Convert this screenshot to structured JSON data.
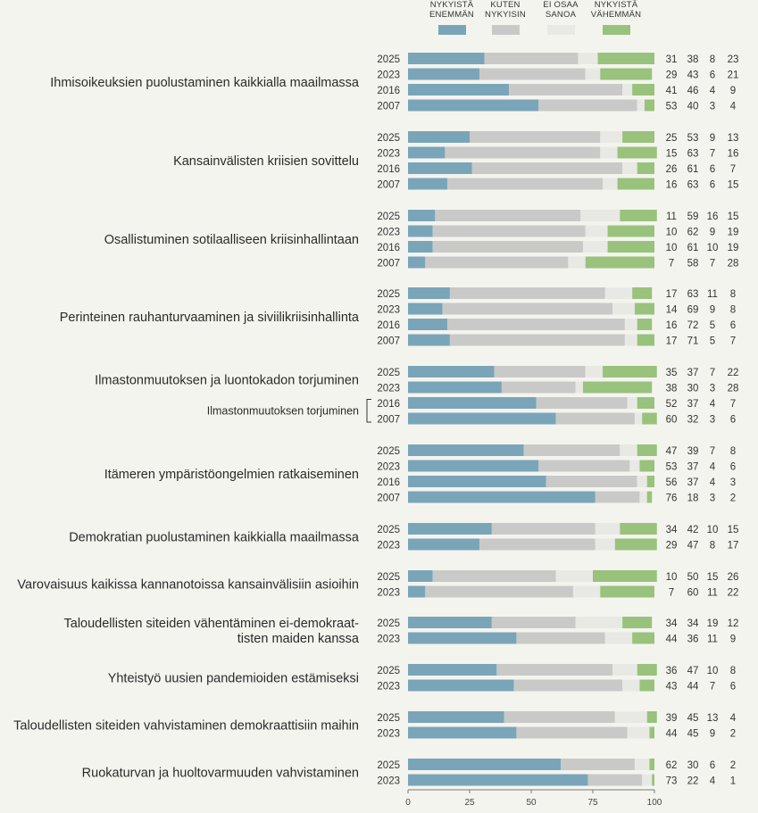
{
  "legend": [
    {
      "label": "NYKYISTÄ\nENEMMÄN",
      "color": "#7aa5b8"
    },
    {
      "label": "KUTEN\nNYKYISIN",
      "color": "#c9c9c8"
    },
    {
      "label": "EI OSAA\nSANOA",
      "color": "#e8e8e5"
    },
    {
      "label": "NYKYISTÄ\nVÄHEMMÄN",
      "color": "#99c27c"
    }
  ],
  "chart_data": {
    "type": "bar",
    "orientation": "horizontal",
    "stacked": true,
    "xlim": [
      0,
      100
    ],
    "xticks": [
      "0",
      "25",
      "50",
      "75",
      "100"
    ],
    "series_names": [
      "NYKYISTÄ ENEMMÄN",
      "KUTEN NYKYISIN",
      "EI OSAA SANOA",
      "NYKYISTÄ VÄHEMMÄN"
    ],
    "groups": [
      {
        "label": "Ihmisoikeuksien puolustaminen kaikkialla maailmassa",
        "rows": [
          {
            "year": "2025",
            "values": [
              31,
              38,
              8,
              23
            ]
          },
          {
            "year": "2023",
            "values": [
              29,
              43,
              6,
              21
            ]
          },
          {
            "year": "2016",
            "values": [
              41,
              46,
              4,
              9
            ]
          },
          {
            "year": "2007",
            "values": [
              53,
              40,
              3,
              4
            ]
          }
        ]
      },
      {
        "label": "Kansainvälisten kriisien sovittelu",
        "rows": [
          {
            "year": "2025",
            "values": [
              25,
              53,
              9,
              13
            ]
          },
          {
            "year": "2023",
            "values": [
              15,
              63,
              7,
              16
            ]
          },
          {
            "year": "2016",
            "values": [
              26,
              61,
              6,
              7
            ]
          },
          {
            "year": "2007",
            "values": [
              16,
              63,
              6,
              15
            ]
          }
        ]
      },
      {
        "label": "Osallistuminen sotilaalliseen kriisinhallintaan",
        "rows": [
          {
            "year": "2025",
            "values": [
              11,
              59,
              16,
              15
            ]
          },
          {
            "year": "2023",
            "values": [
              10,
              62,
              9,
              19
            ]
          },
          {
            "year": "2016",
            "values": [
              10,
              61,
              10,
              19
            ]
          },
          {
            "year": "2007",
            "values": [
              7,
              58,
              7,
              28
            ]
          }
        ]
      },
      {
        "label": "Perinteinen rauhanturvaaminen ja siviilikriisinhallinta",
        "rows": [
          {
            "year": "2025",
            "values": [
              17,
              63,
              11,
              8
            ]
          },
          {
            "year": "2023",
            "values": [
              14,
              69,
              9,
              8
            ]
          },
          {
            "year": "2016",
            "values": [
              16,
              72,
              5,
              6
            ]
          },
          {
            "year": "2007",
            "values": [
              17,
              71,
              5,
              7
            ]
          }
        ]
      },
      {
        "label": "Ilmastonmuutoksen ja luontokadon torjuminen",
        "sublabel": "Ilmastonmuutoksen torjuminen",
        "rows": [
          {
            "year": "2025",
            "values": [
              35,
              37,
              7,
              22
            ]
          },
          {
            "year": "2023",
            "values": [
              38,
              30,
              3,
              28
            ]
          },
          {
            "year": "2016",
            "values": [
              52,
              37,
              4,
              7
            ]
          },
          {
            "year": "2007",
            "values": [
              60,
              32,
              3,
              6
            ]
          }
        ]
      },
      {
        "label": "Itämeren ympäristöongelmien ratkaiseminen",
        "rows": [
          {
            "year": "2025",
            "values": [
              47,
              39,
              7,
              8
            ]
          },
          {
            "year": "2023",
            "values": [
              53,
              37,
              4,
              6
            ]
          },
          {
            "year": "2016",
            "values": [
              56,
              37,
              4,
              3
            ]
          },
          {
            "year": "2007",
            "values": [
              76,
              18,
              3,
              2
            ]
          }
        ]
      },
      {
        "label": "Demokratian puolustaminen kaikkialla maailmassa",
        "rows": [
          {
            "year": "2025",
            "values": [
              34,
              42,
              10,
              15
            ]
          },
          {
            "year": "2023",
            "values": [
              29,
              47,
              8,
              17
            ]
          }
        ]
      },
      {
        "label": "Varovaisuus kaikissa kannanotoissa kansainvälisiin asioihin",
        "rows": [
          {
            "year": "2025",
            "values": [
              10,
              50,
              15,
              26
            ]
          },
          {
            "year": "2023",
            "values": [
              7,
              60,
              11,
              22
            ]
          }
        ]
      },
      {
        "label": "Taloudellisten siteiden vähentäminen ei-demokraat-\ntisten maiden kanssa",
        "rows": [
          {
            "year": "2025",
            "values": [
              34,
              34,
              19,
              12
            ]
          },
          {
            "year": "2023",
            "values": [
              44,
              36,
              11,
              9
            ]
          }
        ]
      },
      {
        "label": "Yhteistyö uusien pandemioiden estämiseksi",
        "rows": [
          {
            "year": "2025",
            "values": [
              36,
              47,
              10,
              8
            ]
          },
          {
            "year": "2023",
            "values": [
              43,
              44,
              7,
              6
            ]
          }
        ]
      },
      {
        "label": "Taloudellisten siteiden vahvistaminen demokraattisiin maihin",
        "rows": [
          {
            "year": "2025",
            "values": [
              39,
              45,
              13,
              4
            ]
          },
          {
            "year": "2023",
            "values": [
              44,
              45,
              9,
              2
            ]
          }
        ]
      },
      {
        "label": "Ruokaturvan ja huoltovarmuuden vahvistaminen",
        "rows": [
          {
            "year": "2025",
            "values": [
              62,
              30,
              6,
              2
            ]
          },
          {
            "year": "2023",
            "values": [
              73,
              22,
              4,
              1
            ]
          }
        ]
      }
    ]
  }
}
